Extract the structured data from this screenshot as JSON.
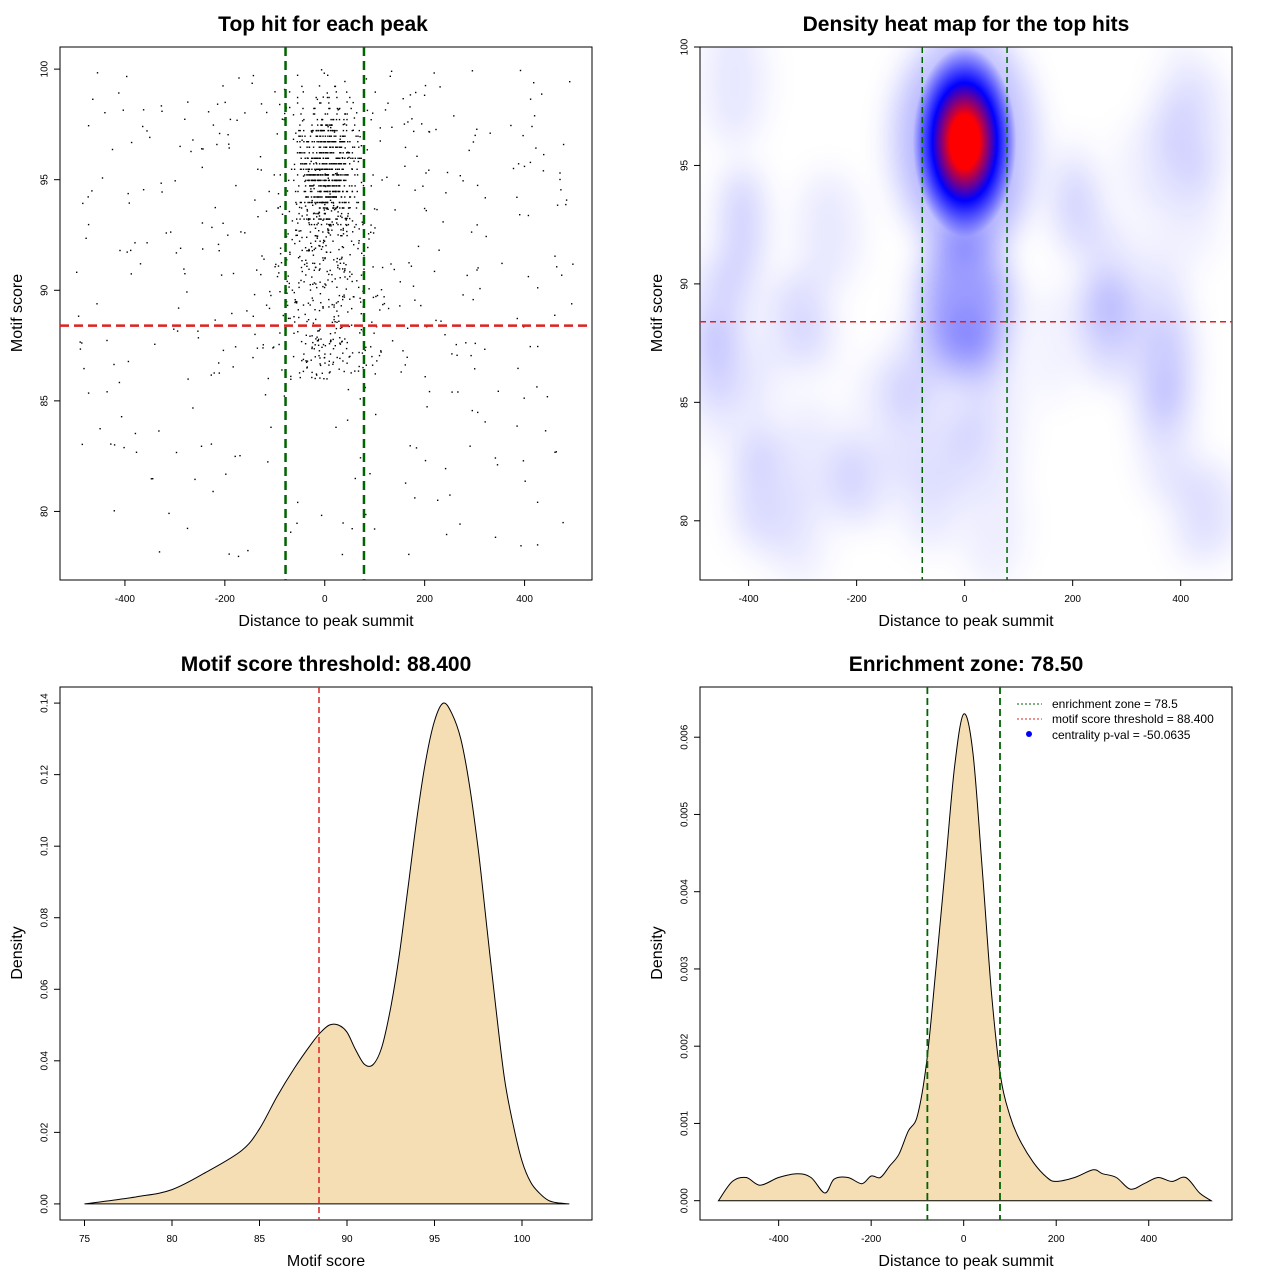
{
  "colors": {
    "fill": "#f5deb3",
    "green_line": "#006400",
    "red_line": "#dd2222",
    "point": "#000000",
    "heat_low": "#ffffff",
    "heat_mid": "#0000ff",
    "heat_high": "#ff0000",
    "legend_point": "#0000ff"
  },
  "chart_data": [
    {
      "type": "scatter",
      "title": "Top hit for each peak",
      "xlabel": "Distance to peak summit",
      "ylabel": "Motif score",
      "xlim": [
        -530,
        535
      ],
      "ylim": [
        76.9,
        101.0
      ],
      "xticks": [
        -400,
        -200,
        0,
        200,
        400
      ],
      "yticks": [
        80,
        85,
        90,
        95,
        100
      ],
      "vlines": [
        -78.5,
        78.5
      ],
      "hline": 88.4,
      "points_summary": {
        "n_points": 1400,
        "central_cluster_center": [
          0,
          95.5
        ],
        "description": "dense cluster centered near 0 distance with motif scores around 93-99, sparse uniform background across -500..500"
      }
    },
    {
      "type": "heatmap",
      "title": "Density heat map for the top hits",
      "xlabel": "Distance to peak summit",
      "ylabel": "Motif score",
      "xlim": [
        -490,
        495
      ],
      "ylim": [
        77.5,
        100.0
      ],
      "xticks": [
        -400,
        -200,
        0,
        200,
        400
      ],
      "yticks": [
        80,
        85,
        90,
        95,
        100
      ],
      "vlines": [
        -78.5,
        78.5
      ],
      "hline": 88.4,
      "peak": {
        "x": 0,
        "y": 96
      }
    },
    {
      "type": "area",
      "title": "Motif score threshold: 88.400",
      "xlabel": "Motif score",
      "ylabel": "Density",
      "xlim": [
        73.6,
        104.0
      ],
      "ylim": [
        -0.0045,
        0.1445
      ],
      "xticks": [
        75,
        80,
        85,
        90,
        95,
        100
      ],
      "yticks": [
        "0.00",
        "0.02",
        "0.04",
        "0.06",
        "0.08",
        "0.10",
        "0.12",
        "0.14"
      ],
      "vline": 88.4,
      "x": [
        75,
        78,
        80,
        82,
        84,
        85,
        86,
        87,
        88,
        88.5,
        89,
        89.5,
        90,
        90.5,
        91,
        91.5,
        92,
        92.5,
        93,
        93.5,
        94,
        94.5,
        95,
        95.5,
        96,
        96.5,
        97,
        97.5,
        98,
        98.5,
        99,
        99.5,
        100,
        100.5,
        101,
        101.5,
        102,
        102.7
      ],
      "y": [
        0,
        0.002,
        0.004,
        0.009,
        0.015,
        0.021,
        0.03,
        0.038,
        0.045,
        0.048,
        0.05,
        0.05,
        0.048,
        0.043,
        0.039,
        0.039,
        0.044,
        0.055,
        0.07,
        0.089,
        0.108,
        0.124,
        0.135,
        0.14,
        0.137,
        0.13,
        0.117,
        0.099,
        0.077,
        0.055,
        0.035,
        0.022,
        0.012,
        0.006,
        0.003,
        0.001,
        0.0003,
        0
      ]
    },
    {
      "type": "area",
      "title": "Enrichment zone: 78.50",
      "xlabel": "Distance to peak summit",
      "ylabel": "Density",
      "xlim": [
        -570,
        580
      ],
      "ylim": [
        -0.00025,
        0.00665
      ],
      "xticks": [
        -400,
        -200,
        0,
        200,
        400
      ],
      "yticks": [
        "0.000",
        "0.001",
        "0.002",
        "0.003",
        "0.004",
        "0.005",
        "0.006"
      ],
      "vlines": [
        -78.5,
        78.5
      ],
      "x": [
        -530,
        -500,
        -470,
        -440,
        -400,
        -360,
        -330,
        -300,
        -280,
        -250,
        -220,
        -200,
        -180,
        -160,
        -140,
        -120,
        -100,
        -80,
        -60,
        -40,
        -20,
        0,
        20,
        40,
        60,
        80,
        100,
        120,
        150,
        180,
        200,
        240,
        280,
        300,
        330,
        360,
        390,
        420,
        450,
        480,
        510,
        535
      ],
      "y": [
        0,
        0.00025,
        0.0003,
        0.0002,
        0.0003,
        0.00035,
        0.0003,
        0.0001,
        0.00028,
        0.0003,
        0.00022,
        0.00032,
        0.0003,
        0.00045,
        0.0006,
        0.0009,
        0.0011,
        0.0018,
        0.003,
        0.0043,
        0.0056,
        0.0063,
        0.0058,
        0.0043,
        0.0027,
        0.0016,
        0.0011,
        0.0008,
        0.0005,
        0.0003,
        0.00025,
        0.0003,
        0.0004,
        0.00035,
        0.0003,
        0.00015,
        0.00022,
        0.0003,
        0.00025,
        0.0003,
        0.0001,
        0
      ],
      "legend": {
        "placement": "top-right",
        "entries": [
          {
            "label": "enrichment zone = 78.5",
            "style": "dotted-line",
            "color": "#006400"
          },
          {
            "label": "motif score threshold = 88.400",
            "style": "dotted-line",
            "color": "#dd2222"
          },
          {
            "label": "centrality p-val = -50.0635",
            "style": "point",
            "color": "#0000ff"
          }
        ]
      }
    }
  ]
}
